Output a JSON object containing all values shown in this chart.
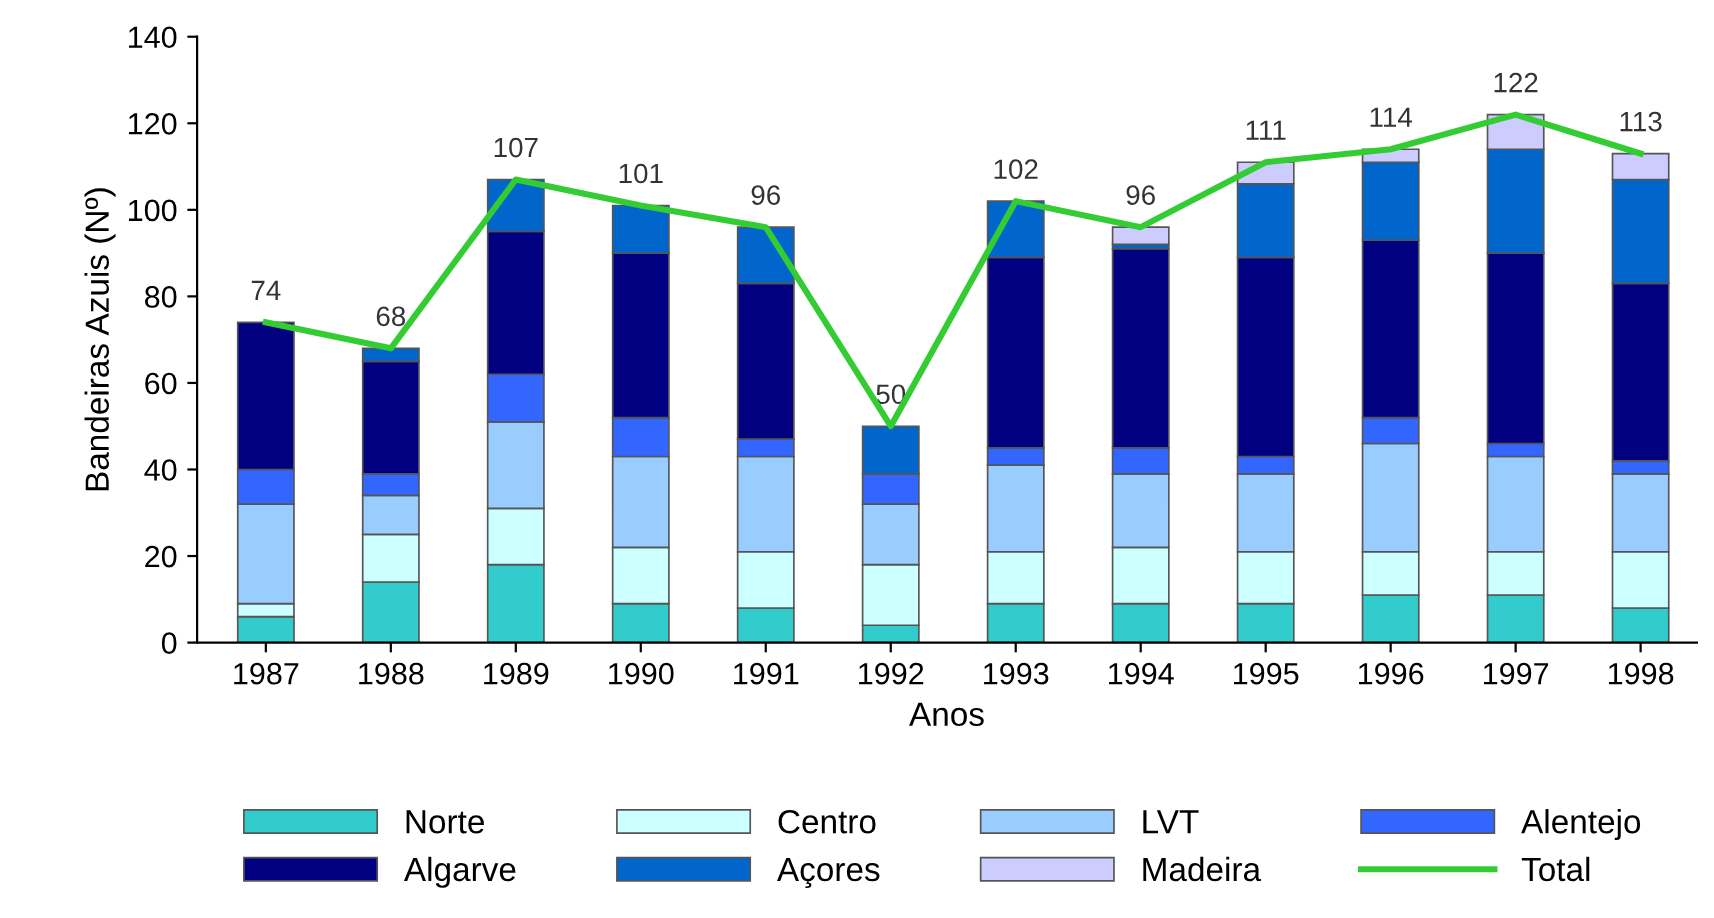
{
  "chart_data": {
    "type": "bar",
    "stacked": true,
    "xlabel": "Anos",
    "ylabel": "Bandeiras Azuis (Nº)",
    "categories": [
      "1987",
      "1988",
      "1989",
      "1990",
      "1991",
      "1992",
      "1993",
      "1994",
      "1995",
      "1996",
      "1997",
      "1998"
    ],
    "ylim": [
      0,
      140
    ],
    "yticks": [
      0,
      20,
      40,
      60,
      80,
      100,
      120,
      140
    ],
    "grid": false,
    "legend": "bottom",
    "series": [
      {
        "name": "Norte",
        "color": "#33cccc",
        "values": [
          6,
          14,
          18,
          9,
          8,
          4,
          9,
          9,
          9,
          11,
          11,
          8
        ]
      },
      {
        "name": "Centro",
        "color": "#ccffff",
        "values": [
          3,
          11,
          13,
          13,
          13,
          14,
          12,
          13,
          12,
          10,
          10,
          13
        ]
      },
      {
        "name": "LVT",
        "color": "#99ccff",
        "values": [
          23,
          9,
          20,
          21,
          22,
          14,
          20,
          17,
          18,
          25,
          22,
          18
        ]
      },
      {
        "name": "Alentejo",
        "color": "#3366ff",
        "values": [
          8,
          5,
          11,
          9,
          4,
          7,
          4,
          6,
          4,
          6,
          3,
          3
        ]
      },
      {
        "name": "Algarve",
        "color": "#000080",
        "values": [
          34,
          26,
          33,
          38,
          36,
          null,
          44,
          46,
          46,
          41,
          44,
          41
        ]
      },
      {
        "name": "Açores",
        "color": "#0066cc",
        "values": [
          null,
          3,
          12,
          11,
          13,
          11,
          13,
          1,
          17,
          18,
          24,
          24
        ]
      },
      {
        "name": "Madeira",
        "color": "#ccccff",
        "values": [
          null,
          null,
          null,
          null,
          null,
          null,
          null,
          4,
          5,
          3,
          8,
          6
        ]
      },
      {
        "name": "Total",
        "color": "#33cc33",
        "type": "line",
        "values": [
          74,
          68,
          107,
          101,
          96,
          50,
          102,
          96,
          111,
          114,
          122,
          113
        ],
        "value_labels": [
          "74",
          "68",
          "107",
          "101",
          "96",
          "50",
          "102",
          "96",
          "111",
          "114",
          "122",
          "113"
        ]
      }
    ]
  }
}
